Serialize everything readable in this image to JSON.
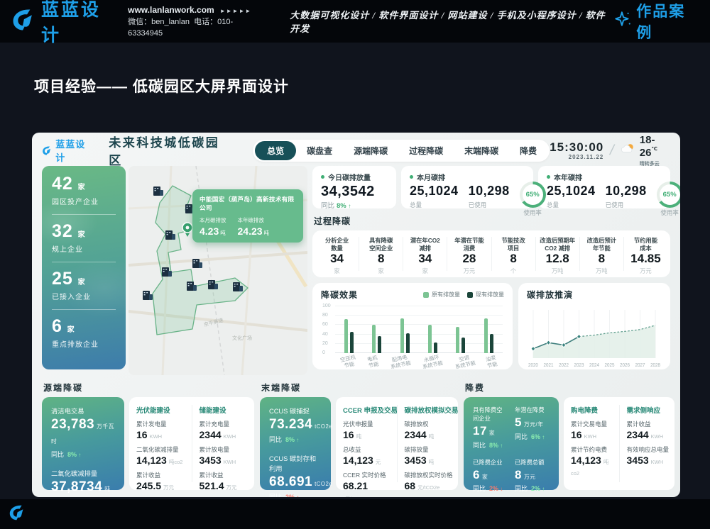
{
  "colors": {
    "blue": "#1e9fe8",
    "teal": "#175058",
    "green": "#3fae74",
    "light_green": "#7cc493",
    "dark_green": "#1b453a",
    "red": "#e0574f"
  },
  "site_header": {
    "logo_text": "蓝蓝设计",
    "website": "www.lanlanwork.com",
    "arrows": "►►►►►",
    "wechat": "微信：ben_lanlan",
    "phone": "电话：010-63334945",
    "services": "大数据可视化设计 / 软件界面设计 / 网站建设 / 手机及小程序设计 / 软件开发",
    "portfolio_label": "作品案例"
  },
  "page": {
    "title": "项目经验—— 低碳园区大屏界面设计"
  },
  "dashboard": {
    "brand": "蓝蓝设计",
    "title": "未来科技城低碳园区",
    "tabs": [
      {
        "label": "总览",
        "active": true
      },
      {
        "label": "碳盘查",
        "active": false
      },
      {
        "label": "源端降碳",
        "active": false
      },
      {
        "label": "过程降碳",
        "active": false
      },
      {
        "label": "末端降碳",
        "active": false
      },
      {
        "label": "降费",
        "active": false
      }
    ],
    "clock": {
      "time": "15:30:00",
      "date": "2023.11.22"
    },
    "weather": {
      "range": "18-26",
      "unit": "℃",
      "desc": "晴转多云"
    },
    "sidebar_stats": [
      {
        "value": "42",
        "unit": "家",
        "label": "园区投产企业"
      },
      {
        "value": "32",
        "unit": "家",
        "label": "规上企业"
      },
      {
        "value": "25",
        "unit": "家",
        "label": "已接入企业"
      },
      {
        "value": "6",
        "unit": "家",
        "label": "重点排放企业"
      }
    ],
    "map": {
      "tooltip": {
        "company": "中能国宏（葫芦岛）高新技术有限公司",
        "month_label": "本月碳排放",
        "month_value": "4.23",
        "month_unit": "吨",
        "year_label": "本年碳排放",
        "year_value": "24.23",
        "year_unit": "吨"
      },
      "labels": [
        {
          "text": "龙腾世纪\n文化广场",
          "tone": "green"
        },
        {
          "text": "京平高速",
          "tone": "gray"
        },
        {
          "text": "文化广场",
          "tone": "gray"
        }
      ]
    },
    "kpi_cards": [
      {
        "title": "今日碳排放量",
        "value": "34,3542",
        "compare_label": "同比",
        "compare_value": "8%",
        "arrow": "↑"
      },
      {
        "title": "本月碳排",
        "total": "25,1024",
        "total_label": "总量",
        "used": "10,298",
        "used_label": "已使用",
        "rate": "65%",
        "rate_label": "使用率"
      },
      {
        "title": "本年碳排",
        "total": "25,1024",
        "total_label": "总量",
        "used": "10,298",
        "used_label": "已使用",
        "rate": "65%",
        "rate_label": "使用率"
      }
    ],
    "process_section": {
      "title": "过程降碳",
      "stats": [
        {
          "label": "分析企业\n数量",
          "value": "34",
          "unit": "家"
        },
        {
          "label": "具有降碳\n空间企业",
          "value": "8",
          "unit": "家"
        },
        {
          "label": "潜在年CO2\n减排",
          "value": "34",
          "unit": "家"
        },
        {
          "label": "年潜在节能\n消费",
          "value": "28",
          "unit": "万元"
        },
        {
          "label": "节能技改\n项目",
          "value": "8",
          "unit": "个"
        },
        {
          "label": "改造后预期年\nCO2 减排",
          "value": "12.8",
          "unit": "万吨"
        },
        {
          "label": "改造后预计\n年节能",
          "value": "8",
          "unit": "万吨"
        },
        {
          "label": "节约用能\n成本",
          "value": "14.85",
          "unit": "万元"
        }
      ]
    },
    "source_section": {
      "title": "源端降碳",
      "gradient_stats": [
        {
          "label": "清洁电交易",
          "value": "23,783",
          "unit": "万千瓦时",
          "compare_label": "同比",
          "pct": "8%",
          "arrow": "↑",
          "tone": "green"
        },
        {
          "label": "二氧化碳减排量",
          "value": "37,8734",
          "unit": "吨CO2",
          "compare_label": "同比",
          "pct": "2%",
          "arrow": "↑",
          "tone": "wred"
        }
      ],
      "detail_columns": [
        {
          "title": "光伏能建设",
          "items": [
            {
              "label": "累计发电量",
              "value": "16",
              "unit": "KWH"
            },
            {
              "label": "二氧化碳减排量",
              "value": "14,123",
              "unit": "吨co2"
            },
            {
              "label": "累计收益",
              "value": "245.5",
              "unit": "万元"
            }
          ]
        },
        {
          "title": "储能建设",
          "items": [
            {
              "label": "累计充电量",
              "value": "2344",
              "unit": "KWH"
            },
            {
              "label": "累计放电量",
              "value": "3453",
              "unit": "KWH"
            },
            {
              "label": "累计收益",
              "value": "521.4",
              "unit": "万元"
            }
          ]
        }
      ]
    },
    "terminal_section": {
      "title": "末端降碳",
      "gradient_stats": [
        {
          "label": "CCUS 碳捕捉",
          "value": "73.234",
          "unit": "tCO2e",
          "compare_label": "同比",
          "pct": "8%",
          "arrow": "↑",
          "tone": "green"
        },
        {
          "label": "CCUS 碳封存和利用",
          "value": "68.691",
          "unit": "tCO2e",
          "compare_label": "同比",
          "pct": "2%",
          "arrow": "↑",
          "tone": "red"
        }
      ],
      "detail_columns": [
        {
          "title": "CCER 申报及交易",
          "items": [
            {
              "label": "光伏申报量",
              "value": "16",
              "unit": "吨"
            },
            {
              "label": "总收益",
              "value": "14,123",
              "unit": "元"
            },
            {
              "label": "CCER 实时价格",
              "value": "68.21",
              "unit": "元/tCO2e"
            }
          ]
        },
        {
          "title": "碳排放权模拟交易",
          "items": [
            {
              "label": "碳排放权",
              "value": "2344",
              "unit": "吨"
            },
            {
              "label": "碳排放量",
              "value": "3453",
              "unit": "吨"
            },
            {
              "label": "碳排放权实时价格",
              "value": "68",
              "unit": "元/tCO2e"
            }
          ]
        }
      ]
    },
    "fee_section": {
      "title": "降费",
      "gradient_stats": [
        {
          "label": "具有降费空间企业",
          "value": "17",
          "unit": "家",
          "compare_label": "同比",
          "pct": "8%",
          "arrow": "↑",
          "tone": "green"
        },
        {
          "label": "年潜在降费",
          "value": "5",
          "unit": "万元/年",
          "compare_label": "同比",
          "pct": "6%",
          "arrow": "↑",
          "tone": "green"
        },
        {
          "label": "已降费企业",
          "value": "6",
          "unit": "家",
          "compare_label": "同比",
          "pct": "2%",
          "arrow": "↓",
          "tone": "red"
        },
        {
          "label": "已降费总额",
          "value": "8",
          "unit": "万元",
          "compare_label": "同比",
          "pct": "2%",
          "arrow": "↑",
          "tone": "green"
        }
      ],
      "detail_columns": [
        {
          "title": "购电降费",
          "items": [
            {
              "label": "累计交易电量",
              "value": "16",
              "unit": "KWH"
            },
            {
              "label": "累计节约电费",
              "value": "14,123",
              "unit": "吨co2"
            }
          ]
        },
        {
          "title": "需求侧响应",
          "items": [
            {
              "label": "累计收益",
              "value": "2344",
              "unit": "KWH"
            },
            {
              "label": "有效响应总电量",
              "value": "3453",
              "unit": "KWH"
            }
          ]
        }
      ]
    }
  },
  "chart_data": [
    {
      "type": "bar",
      "title": "降碳效果",
      "categories": [
        "空压机\n节能",
        "电机\n节能",
        "配用电\n系统节能",
        "水循环\n系统节能",
        "空调\n系统节能",
        "油泵\n节能"
      ],
      "series": [
        {
          "name": "原有排放量",
          "color": "#7cc493",
          "values": [
            72,
            61,
            75,
            61,
            56,
            75
          ]
        },
        {
          "name": "现有排放量",
          "color": "#1b453a",
          "values": [
            45,
            37,
            42,
            23,
            33,
            41
          ]
        }
      ],
      "ylim": [
        0,
        100
      ],
      "yticks": [
        0,
        20,
        40,
        60,
        80,
        100
      ],
      "legend_position": "top-right",
      "grid": true
    },
    {
      "type": "line",
      "title": "碳排放推演",
      "x": [
        "2020",
        "2021",
        "2022",
        "2023",
        "2024",
        "2025",
        "2026",
        "2027",
        "2028"
      ],
      "values": [
        20,
        33,
        28,
        46,
        49,
        54,
        57,
        61,
        70
      ],
      "solid_until": "2023",
      "style": "area fill, solid history with diamond markers, dashed projection",
      "ylim": [
        0,
        100
      ],
      "grid": "vertical"
    }
  ]
}
